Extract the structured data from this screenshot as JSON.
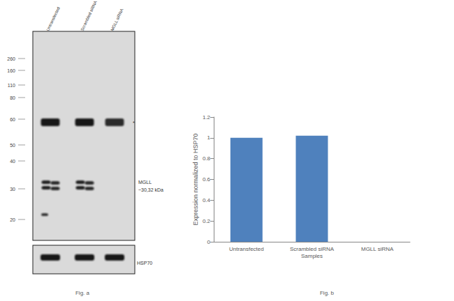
{
  "chart_data": {
    "type": "bar",
    "categories": [
      "Untransfected",
      "Scrambled siRNA",
      "MGLL siRNA"
    ],
    "values": [
      1,
      1.02,
      0
    ],
    "color": "#4f81bd",
    "x_label": "Samples",
    "y_label": "Expression normalized to HSP70",
    "ylim": [
      0,
      1.2
    ],
    "yticks": [
      0,
      0.2,
      0.4,
      0.6,
      0.8,
      1,
      1.2
    ],
    "grid": false,
    "caption": "Fig. b"
  },
  "blot": {
    "lanes": [
      "Untransfected",
      "Scrambled siRNA",
      "MGLL siRNA"
    ],
    "markers_kda": [
      260,
      160,
      110,
      80,
      60,
      50,
      40,
      30,
      20
    ],
    "band_label": [
      "MGLL",
      "~30,32 kDa"
    ],
    "nonspecific_mark": "*",
    "loading_control": "HSP70",
    "caption": "Fig. a"
  }
}
